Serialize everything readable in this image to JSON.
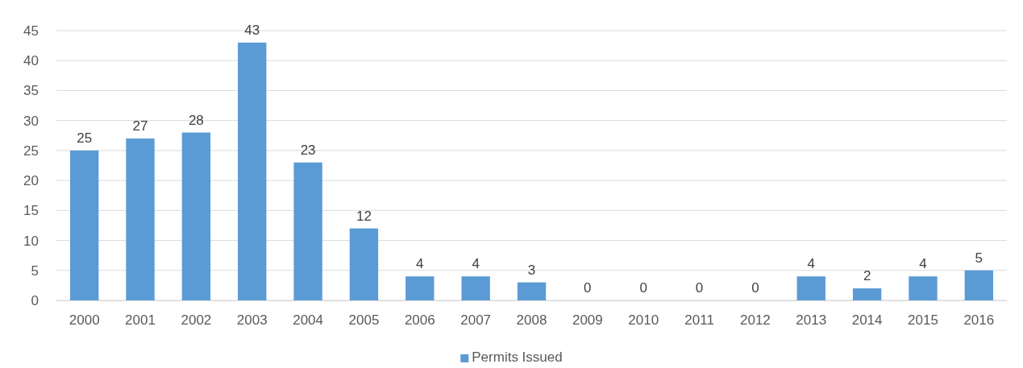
{
  "chart_data": {
    "type": "bar",
    "categories": [
      "2000",
      "2001",
      "2002",
      "2003",
      "2004",
      "2005",
      "2006",
      "2007",
      "2008",
      "2009",
      "2010",
      "2011",
      "2012",
      "2013",
      "2014",
      "2015",
      "2016"
    ],
    "series": [
      {
        "name": "Permits Issued",
        "color": "#5b9bd5",
        "values": [
          25,
          27,
          28,
          43,
          23,
          12,
          4,
          4,
          3,
          0,
          0,
          0,
          0,
          4,
          2,
          4,
          5
        ]
      }
    ],
    "ylim": [
      0,
      45
    ],
    "yticks": [
      0,
      5,
      10,
      15,
      20,
      25,
      30,
      35,
      40,
      45
    ],
    "grid": "y",
    "data_labels": true,
    "legend": "bottom"
  }
}
